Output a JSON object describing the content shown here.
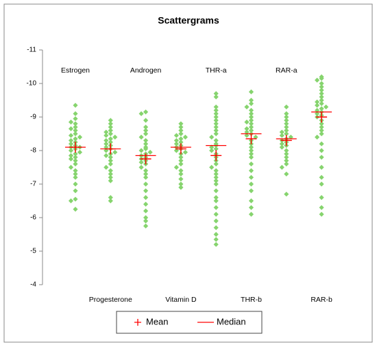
{
  "chart_data": {
    "type": "beeswarm",
    "title": "Scattergrams",
    "categories": [
      "Estrogen",
      "Progesterone",
      "Androgen",
      "Vitamin D",
      "THR-a",
      "THR-b",
      "RAR-a",
      "RAR-b"
    ],
    "points": [
      [
        -9.35,
        -9.1,
        -8.95,
        -8.85,
        -8.8,
        -8.7,
        -8.65,
        -8.6,
        -8.5,
        -8.45,
        -8.4,
        -8.35,
        -8.3,
        -8.25,
        -8.2,
        -8.15,
        -8.1,
        -8.1,
        -8.05,
        -8.0,
        -7.95,
        -7.9,
        -7.85,
        -7.8,
        -7.75,
        -7.7,
        -7.6,
        -7.5,
        -7.4,
        -7.3,
        -7.2,
        -7.0,
        -6.8,
        -6.55,
        -6.5,
        -6.25
      ],
      [
        -8.9,
        -8.8,
        -8.7,
        -8.6,
        -8.55,
        -8.5,
        -8.45,
        -8.4,
        -8.35,
        -8.3,
        -8.25,
        -8.2,
        -8.15,
        -8.1,
        -8.05,
        -8.0,
        -7.95,
        -7.9,
        -7.85,
        -7.8,
        -7.7,
        -7.6,
        -7.5,
        -7.4,
        -7.3,
        -7.2,
        -7.1,
        -6.6,
        -6.5
      ],
      [
        -9.15,
        -9.1,
        -8.9,
        -8.7,
        -8.6,
        -8.5,
        -8.4,
        -8.3,
        -8.2,
        -8.1,
        -8.05,
        -8.0,
        -7.95,
        -7.9,
        -7.85,
        -7.8,
        -7.75,
        -7.7,
        -7.65,
        -7.6,
        -7.5,
        -7.4,
        -7.3,
        -7.2,
        -7.0,
        -6.8,
        -6.6,
        -6.4,
        -6.2,
        -6.0,
        -5.9,
        -5.75
      ],
      [
        -8.8,
        -8.7,
        -8.6,
        -8.5,
        -8.45,
        -8.4,
        -8.35,
        -8.3,
        -8.25,
        -8.2,
        -8.15,
        -8.1,
        -8.05,
        -8.0,
        -7.95,
        -7.9,
        -7.8,
        -7.7,
        -7.6,
        -7.5,
        -7.4,
        -7.3,
        -7.15,
        -7.0,
        -6.9
      ],
      [
        -9.7,
        -9.6,
        -9.3,
        -9.2,
        -9.1,
        -9.0,
        -8.9,
        -8.8,
        -8.7,
        -8.6,
        -8.5,
        -8.4,
        -8.3,
        -8.2,
        -8.15,
        -8.1,
        -8.05,
        -8.0,
        -7.9,
        -7.8,
        -7.7,
        -7.6,
        -7.5,
        -7.4,
        -7.3,
        -7.2,
        -7.1,
        -7.0,
        -6.8,
        -6.6,
        -6.5,
        -6.3,
        -6.1,
        -5.9,
        -5.7,
        -5.5,
        -5.35,
        -5.2
      ],
      [
        -9.75,
        -9.5,
        -9.4,
        -9.3,
        -9.2,
        -9.1,
        -9.0,
        -8.9,
        -8.85,
        -8.8,
        -8.7,
        -8.65,
        -8.6,
        -8.55,
        -8.5,
        -8.45,
        -8.4,
        -8.3,
        -8.2,
        -8.1,
        -8.0,
        -7.9,
        -7.8,
        -7.6,
        -7.4,
        -7.2,
        -7.0,
        -6.8,
        -6.5,
        -6.3,
        -6.1
      ],
      [
        -9.3,
        -9.1,
        -9.0,
        -8.9,
        -8.8,
        -8.7,
        -8.6,
        -8.55,
        -8.5,
        -8.45,
        -8.4,
        -8.35,
        -8.3,
        -8.25,
        -8.2,
        -8.15,
        -8.1,
        -8.0,
        -7.9,
        -7.8,
        -7.7,
        -7.6,
        -7.5,
        -7.3,
        -6.7
      ],
      [
        -10.2,
        -10.15,
        -10.1,
        -10.0,
        -9.9,
        -9.8,
        -9.7,
        -9.6,
        -9.5,
        -9.45,
        -9.4,
        -9.35,
        -9.3,
        -9.25,
        -9.2,
        -9.15,
        -9.1,
        -9.05,
        -9.0,
        -8.9,
        -8.8,
        -8.7,
        -8.6,
        -8.5,
        -8.4,
        -8.2,
        -8.0,
        -7.8,
        -7.5,
        -7.2,
        -7.0,
        -6.6,
        -6.3,
        -6.1
      ]
    ],
    "point_color": "#86d46e",
    "mean": [
      -8.1,
      -8.05,
      -7.75,
      -8.05,
      -7.85,
      -8.35,
      -8.3,
      -9.0
    ],
    "median": [
      -8.1,
      -8.05,
      -7.85,
      -8.1,
      -8.15,
      -8.5,
      -8.35,
      -9.15
    ],
    "mean_color": "#ff0000",
    "median_color": "#ff0000",
    "legend": [
      "Mean",
      "Median"
    ],
    "ylim": [
      -4,
      -11
    ],
    "yticks": [
      -4,
      -5,
      -6,
      -7,
      -8,
      -9,
      -10,
      -11
    ],
    "grid": false
  }
}
